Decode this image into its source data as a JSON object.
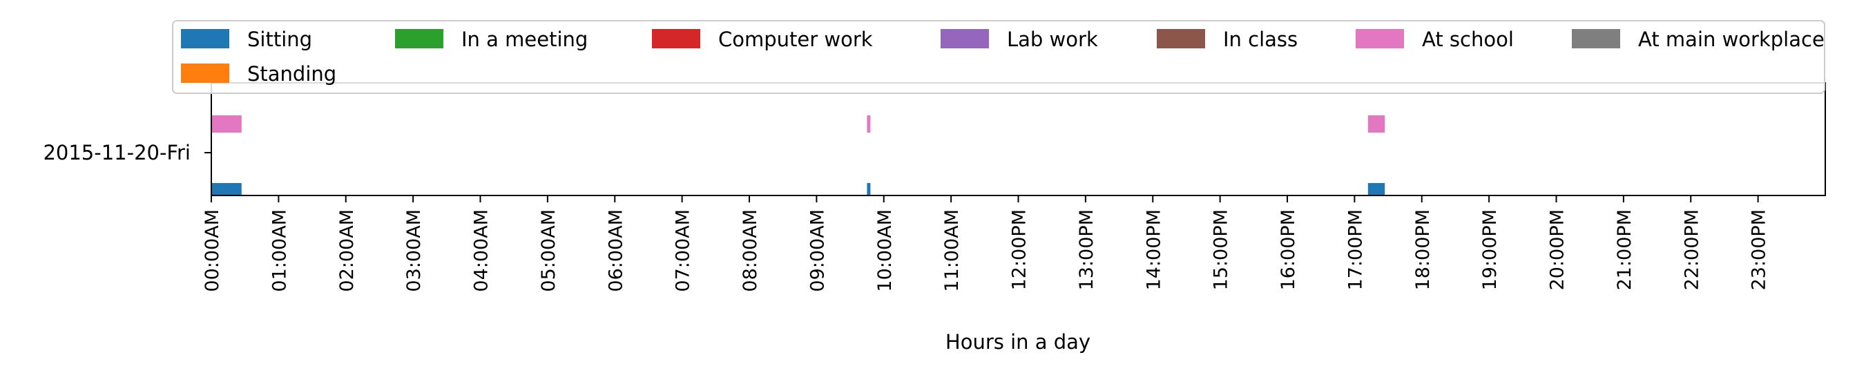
{
  "chart_data": {
    "type": "timeline",
    "xlabel": "Hours in a day",
    "ylabel": "",
    "xlim": [
      0,
      24
    ],
    "date": "2015-11-20-Fri",
    "x_ticks": [
      "00:00AM",
      "01:00AM",
      "02:00AM",
      "03:00AM",
      "04:00AM",
      "05:00AM",
      "06:00AM",
      "07:00AM",
      "08:00AM",
      "09:00AM",
      "10:00AM",
      "11:00AM",
      "12:00PM",
      "13:00PM",
      "14:00PM",
      "15:00PM",
      "16:00PM",
      "17:00PM",
      "18:00PM",
      "19:00PM",
      "20:00PM",
      "21:00PM",
      "22:00PM",
      "23:00PM"
    ],
    "legend": {
      "placement": "top",
      "entries": [
        {
          "name": "Sitting",
          "color": "#1f77b4"
        },
        {
          "name": "Standing",
          "color": "#ff7f0e"
        },
        {
          "name": "In a meeting",
          "color": "#2ca02c"
        },
        {
          "name": "Computer work",
          "color": "#d62728"
        },
        {
          "name": "Lab work",
          "color": "#9467bd"
        },
        {
          "name": "In class",
          "color": "#8c564b"
        },
        {
          "name": "At school",
          "color": "#e377c2"
        },
        {
          "name": "At main workplace",
          "color": "#7f7f7f"
        }
      ]
    },
    "series": [
      {
        "name": "Sitting",
        "color": "#1f77b4",
        "row": "lower",
        "intervals": [
          [
            0.0,
            0.45
          ],
          [
            9.75,
            9.8
          ],
          [
            17.2,
            17.45
          ]
        ]
      },
      {
        "name": "At school",
        "color": "#e377c2",
        "row": "upper",
        "intervals": [
          [
            0.0,
            0.45
          ],
          [
            9.75,
            9.8
          ],
          [
            17.2,
            17.45
          ]
        ]
      }
    ]
  }
}
